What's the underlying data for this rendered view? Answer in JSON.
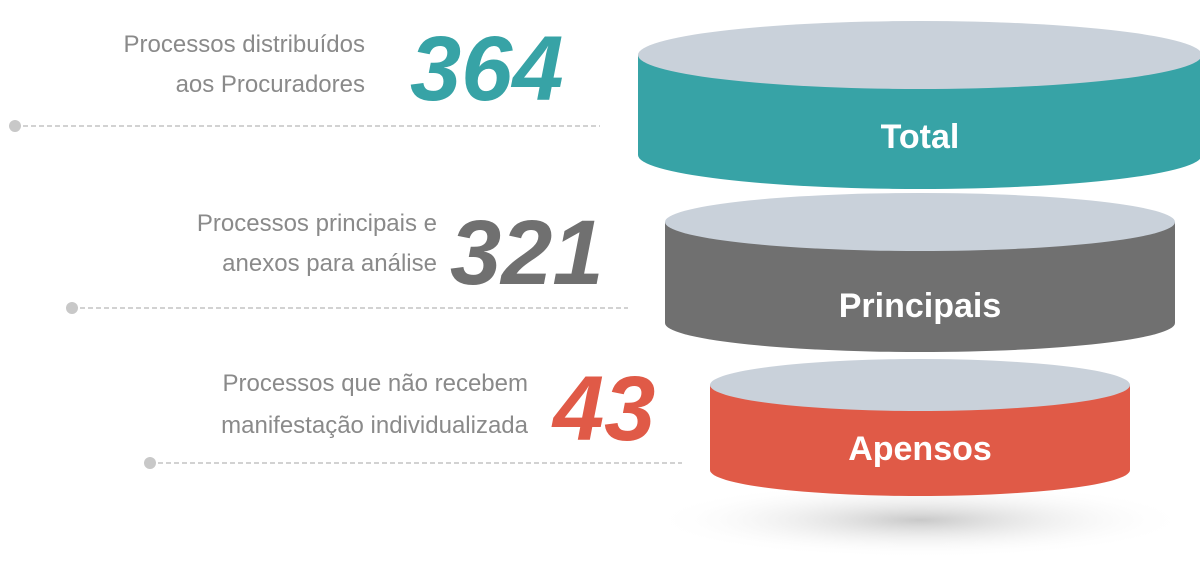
{
  "stages": [
    {
      "label": "Total",
      "description": [
        "Processos distribuídos",
        "aos Procuradores"
      ],
      "value": "364",
      "color": "#37a3a6"
    },
    {
      "label": "Principais",
      "description": [
        "Processos principais e",
        "anexos para análise"
      ],
      "value": "321",
      "color": "#707070"
    },
    {
      "label": "Apensos",
      "description": [
        "Processos que não recebem",
        "manifestação individualizada"
      ],
      "value": "43",
      "color": "#e05a47"
    }
  ]
}
